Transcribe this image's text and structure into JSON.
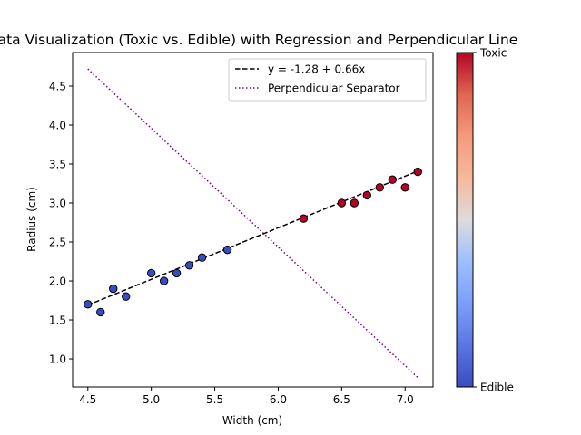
{
  "chart_data": {
    "type": "scatter",
    "title": "Data Visualization (Toxic vs. Edible) with Regression and Perpendicular Line",
    "xlabel": "Width (cm)",
    "ylabel": "Radius (cm)",
    "xlim": [
      4.38,
      7.22
    ],
    "ylim": [
      0.64,
      4.93
    ],
    "xticks": [
      "4.5",
      "5.0",
      "5.5",
      "6.0",
      "6.5",
      "7.0"
    ],
    "yticks": [
      "1.0",
      "1.5",
      "2.0",
      "2.5",
      "3.0",
      "3.5",
      "4.0",
      "4.5"
    ],
    "points": [
      {
        "x": 4.5,
        "y": 1.7,
        "cls": "Edible"
      },
      {
        "x": 4.6,
        "y": 1.6,
        "cls": "Edible"
      },
      {
        "x": 4.7,
        "y": 1.9,
        "cls": "Edible"
      },
      {
        "x": 4.8,
        "y": 1.8,
        "cls": "Edible"
      },
      {
        "x": 5.0,
        "y": 2.1,
        "cls": "Edible"
      },
      {
        "x": 5.1,
        "y": 2.0,
        "cls": "Edible"
      },
      {
        "x": 5.2,
        "y": 2.1,
        "cls": "Edible"
      },
      {
        "x": 5.3,
        "y": 2.2,
        "cls": "Edible"
      },
      {
        "x": 5.4,
        "y": 2.3,
        "cls": "Edible"
      },
      {
        "x": 5.6,
        "y": 2.4,
        "cls": "Edible"
      },
      {
        "x": 6.2,
        "y": 2.8,
        "cls": "Toxic"
      },
      {
        "x": 6.5,
        "y": 3.0,
        "cls": "Toxic"
      },
      {
        "x": 6.6,
        "y": 3.0,
        "cls": "Toxic"
      },
      {
        "x": 6.7,
        "y": 3.1,
        "cls": "Toxic"
      },
      {
        "x": 6.8,
        "y": 3.2,
        "cls": "Toxic"
      },
      {
        "x": 6.9,
        "y": 3.3,
        "cls": "Toxic"
      },
      {
        "x": 7.0,
        "y": 3.2,
        "cls": "Toxic"
      },
      {
        "x": 7.1,
        "y": 3.4,
        "cls": "Toxic"
      }
    ],
    "regression": {
      "label": "y = -1.28 + 0.66x",
      "x": [
        4.5,
        7.1
      ],
      "y": [
        1.69,
        3.41
      ]
    },
    "perpendicular": {
      "label": "Perpendicular Separator",
      "x": [
        4.5,
        7.1
      ],
      "y": [
        4.72,
        0.76
      ]
    },
    "colorbar": {
      "top_label": "Toxic",
      "bottom_label": "Edible"
    },
    "colors": {
      "edible": "#3b4cc0",
      "toxic": "#b40426",
      "regression": "#000000",
      "perpendicular": "#800080"
    },
    "legend_position": "upper-right"
  }
}
